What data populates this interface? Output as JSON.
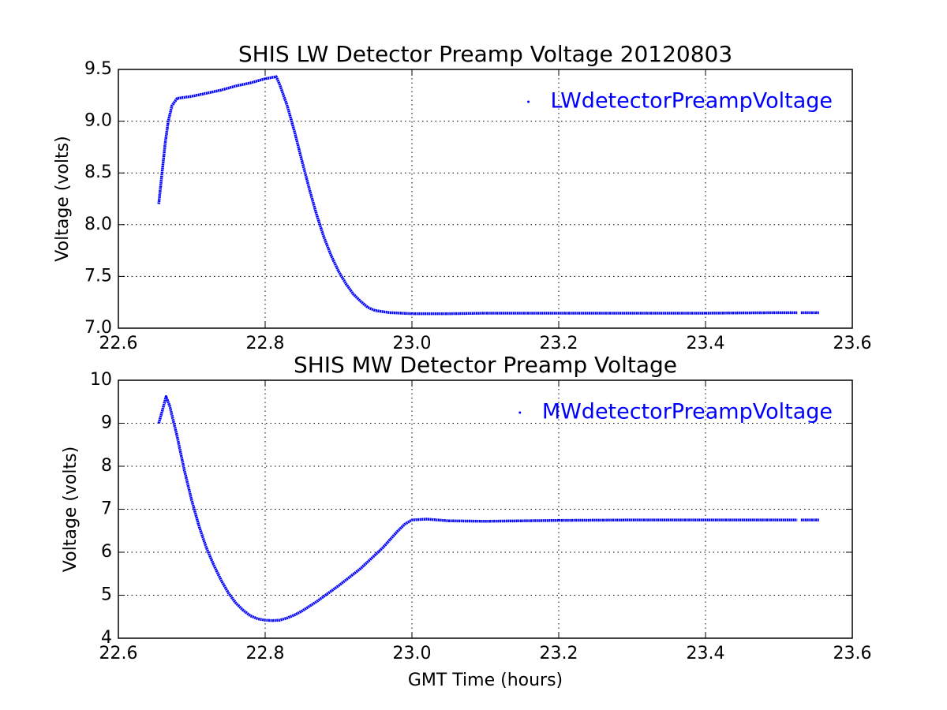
{
  "chart_data": [
    {
      "type": "scatter",
      "title": "SHIS LW Detector Preamp Voltage 20120803",
      "ylabel": "Voltage (volts)",
      "xlim": [
        22.6,
        23.6
      ],
      "xticks": [
        22.6,
        22.8,
        {
          "value": 23,
          "label": "23.0"
        },
        23.2,
        23.4,
        23.6
      ],
      "ylim": [
        7,
        9.5
      ],
      "yticks": [
        {
          "value": 7,
          "label": "7.0"
        },
        7.5,
        {
          "value": 8,
          "label": "8.0"
        },
        8.5,
        {
          "value": 9,
          "label": "9.0"
        },
        9.5
      ],
      "grid": true,
      "legend": "upper right",
      "series": [
        {
          "name": "LWdetectorPreampVoltage",
          "color": "#0000ff",
          "x": [
            22.655,
            22.658,
            22.661,
            22.664,
            22.668,
            22.673,
            22.68,
            22.7,
            22.72,
            22.74,
            22.76,
            22.78,
            22.8,
            22.815,
            22.82,
            22.83,
            22.84,
            22.85,
            22.86,
            22.87,
            22.88,
            22.89,
            22.9,
            22.91,
            22.92,
            22.93,
            22.94,
            22.95,
            22.97,
            23.0,
            23.05,
            23.1,
            23.2,
            23.3,
            23.4,
            23.5,
            23.525,
            23.527,
            23.53,
            23.555
          ],
          "values": [
            8.2,
            8.4,
            8.6,
            8.8,
            9.0,
            9.15,
            9.22,
            9.24,
            9.27,
            9.3,
            9.34,
            9.37,
            9.41,
            9.43,
            9.35,
            9.15,
            8.9,
            8.62,
            8.35,
            8.1,
            7.88,
            7.7,
            7.55,
            7.43,
            7.33,
            7.26,
            7.2,
            7.17,
            7.15,
            7.14,
            7.14,
            7.145,
            7.145,
            7.145,
            7.145,
            7.15,
            7.15,
            null,
            7.15,
            7.15
          ]
        }
      ]
    },
    {
      "type": "scatter",
      "title": "SHIS MW Detector Preamp Voltage",
      "xlabel": "GMT Time (hours)",
      "ylabel": "Voltage (volts)",
      "xlim": [
        22.6,
        23.6
      ],
      "xticks": [
        22.6,
        22.8,
        {
          "value": 23,
          "label": "23.0"
        },
        23.2,
        23.4,
        23.6
      ],
      "ylim": [
        4,
        10
      ],
      "yticks": [
        4,
        5,
        6,
        7,
        8,
        9,
        10
      ],
      "grid": true,
      "legend": "upper right",
      "series": [
        {
          "name": "MWdetectorPreampVoltage",
          "color": "#0000ff",
          "x": [
            22.655,
            22.66,
            22.665,
            22.67,
            22.68,
            22.69,
            22.7,
            22.71,
            22.72,
            22.73,
            22.74,
            22.75,
            22.76,
            22.77,
            22.78,
            22.79,
            22.8,
            22.81,
            22.82,
            22.83,
            22.84,
            22.85,
            22.87,
            22.9,
            22.93,
            22.96,
            22.98,
            22.99,
            23.0,
            23.02,
            23.05,
            23.1,
            23.2,
            23.3,
            23.4,
            23.5,
            23.525,
            23.527,
            23.53,
            23.555
          ],
          "values": [
            9.0,
            9.3,
            9.62,
            9.4,
            8.7,
            7.9,
            7.2,
            6.6,
            6.1,
            5.7,
            5.35,
            5.05,
            4.82,
            4.65,
            4.52,
            4.45,
            4.42,
            4.41,
            4.42,
            4.47,
            4.54,
            4.63,
            4.85,
            5.22,
            5.62,
            6.1,
            6.48,
            6.65,
            6.75,
            6.77,
            6.73,
            6.72,
            6.74,
            6.75,
            6.75,
            6.75,
            6.75,
            null,
            6.75,
            6.75
          ]
        }
      ]
    }
  ]
}
